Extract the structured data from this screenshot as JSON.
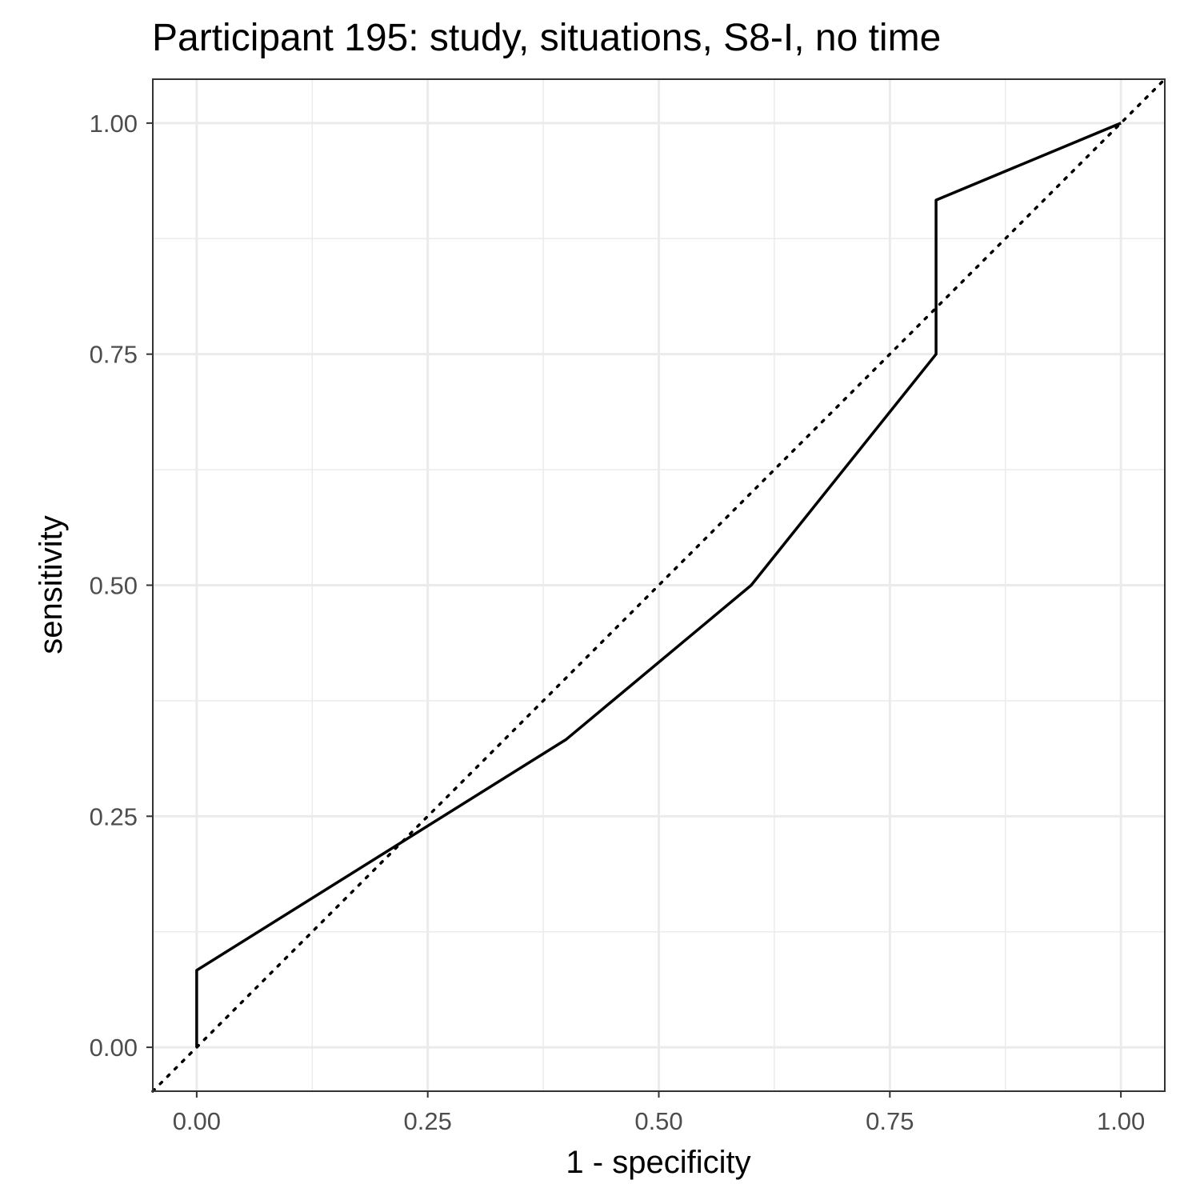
{
  "chart_data": {
    "type": "line",
    "title": "Participant 195: study, situations, S8-I, no time",
    "xlabel": "1 - specificity",
    "ylabel": "sensitivity",
    "xlim": [
      -0.0475,
      1.0475
    ],
    "ylim": [
      -0.0475,
      1.0475
    ],
    "x_ticks": [
      "0.00",
      "0.25",
      "0.50",
      "0.75",
      "1.00"
    ],
    "y_ticks": [
      "0.00",
      "0.25",
      "0.50",
      "0.75",
      "1.00"
    ],
    "grid": true,
    "legend": "none",
    "series": [
      {
        "style": "solid",
        "color": "#000000",
        "x": [
          0.0,
          0.0,
          0.4,
          0.6,
          0.8,
          0.8,
          1.0
        ],
        "y": [
          0.0,
          0.0833,
          0.3333,
          0.5,
          0.75,
          0.9167,
          1.0
        ]
      },
      {
        "style": "dotted",
        "color": "#000000",
        "x": [
          -0.0475,
          1.0475
        ],
        "y": [
          -0.0475,
          1.0475
        ]
      }
    ]
  }
}
